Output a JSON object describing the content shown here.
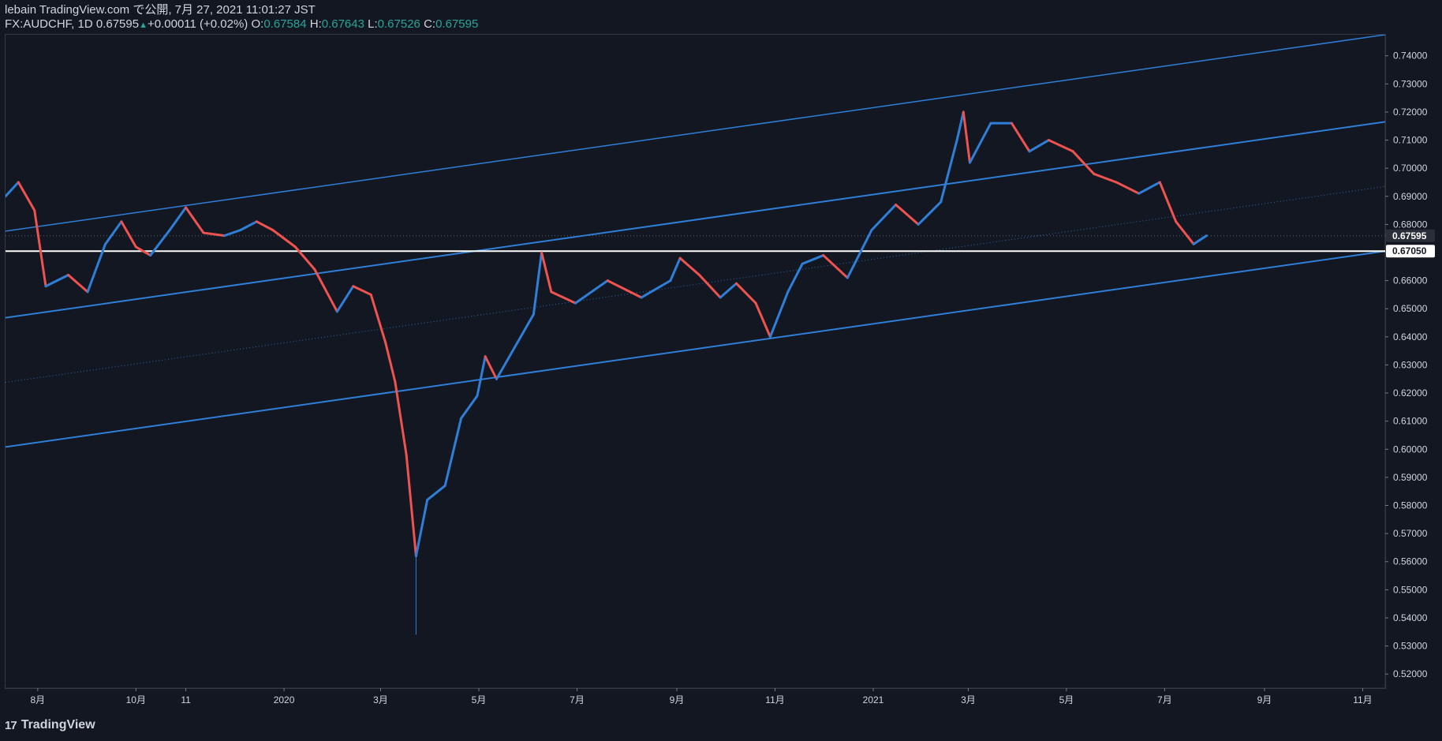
{
  "header": {
    "line1": "lebain TradingView.com で公開, 7月 27, 2021 11:01:27 JST",
    "symbol": "FX:AUDCHF, 1D",
    "last": "0.67595",
    "up_arrow": "▲",
    "change": "+0.00011 (+0.02%)",
    "o_label": "O:",
    "o_value": "0.67584",
    "h_label": "H:",
    "h_value": "0.67643",
    "l_label": "L:",
    "l_value": "0.67526",
    "c_label": "C:",
    "c_value": "0.67595"
  },
  "footer": {
    "logo_mark": "17",
    "logo_text": "TradingView"
  },
  "colors": {
    "background": "#131722",
    "up": "#2f7fd8",
    "down": "#ef5350",
    "channel": "#2f7fd8",
    "level": "#ffffff",
    "axis_text": "#d1d4dc"
  },
  "chart_data": {
    "type": "line",
    "title": "",
    "xlabel": "",
    "ylabel": "",
    "ylim": [
      0.515,
      0.7475
    ],
    "y_ticks": [
      "0.74000",
      "0.73000",
      "0.72000",
      "0.71000",
      "0.70000",
      "0.69000",
      "0.68000",
      "0.67000",
      "0.66000",
      "0.65000",
      "0.64000",
      "0.63000",
      "0.62000",
      "0.61000",
      "0.60000",
      "0.59000",
      "0.58000",
      "0.57000",
      "0.56000",
      "0.55000",
      "0.54000",
      "0.53000",
      "0.52000"
    ],
    "x_ticks": [
      {
        "label": "8月",
        "date": "2019-08-01"
      },
      {
        "label": "10月",
        "date": "2019-10-01"
      },
      {
        "label": "11",
        "date": "2019-11-01"
      },
      {
        "label": "2020",
        "date": "2020-01-01"
      },
      {
        "label": "3月",
        "date": "2020-03-01"
      },
      {
        "label": "5月",
        "date": "2020-05-01"
      },
      {
        "label": "7月",
        "date": "2020-07-01"
      },
      {
        "label": "9月",
        "date": "2020-09-01"
      },
      {
        "label": "11月",
        "date": "2020-11-01"
      },
      {
        "label": "2021",
        "date": "2021-01-01"
      },
      {
        "label": "3月",
        "date": "2021-03-01"
      },
      {
        "label": "5月",
        "date": "2021-05-01"
      },
      {
        "label": "7月",
        "date": "2021-07-01"
      },
      {
        "label": "9月",
        "date": "2021-09-01"
      },
      {
        "label": "11月",
        "date": "2021-11-01"
      }
    ],
    "xlim": [
      "2019-07-12",
      "2021-11-15"
    ],
    "price_path": [
      {
        "date": "2019-07-12",
        "price": 0.69
      },
      {
        "date": "2019-07-20",
        "price": 0.695
      },
      {
        "date": "2019-07-30",
        "price": 0.685
      },
      {
        "date": "2019-08-06",
        "price": 0.658
      },
      {
        "date": "2019-08-20",
        "price": 0.662
      },
      {
        "date": "2019-09-01",
        "price": 0.656
      },
      {
        "date": "2019-09-12",
        "price": 0.673
      },
      {
        "date": "2019-09-22",
        "price": 0.681
      },
      {
        "date": "2019-10-01",
        "price": 0.672
      },
      {
        "date": "2019-10-10",
        "price": 0.669
      },
      {
        "date": "2019-10-22",
        "price": 0.678
      },
      {
        "date": "2019-11-01",
        "price": 0.686
      },
      {
        "date": "2019-11-12",
        "price": 0.677
      },
      {
        "date": "2019-11-25",
        "price": 0.676
      },
      {
        "date": "2019-12-05",
        "price": 0.678
      },
      {
        "date": "2019-12-15",
        "price": 0.681
      },
      {
        "date": "2019-12-25",
        "price": 0.678
      },
      {
        "date": "2020-01-08",
        "price": 0.672
      },
      {
        "date": "2020-01-20",
        "price": 0.664
      },
      {
        "date": "2020-02-03",
        "price": 0.649
      },
      {
        "date": "2020-02-13",
        "price": 0.658
      },
      {
        "date": "2020-02-24",
        "price": 0.655
      },
      {
        "date": "2020-03-04",
        "price": 0.638
      },
      {
        "date": "2020-03-10",
        "price": 0.624
      },
      {
        "date": "2020-03-17",
        "price": 0.598
      },
      {
        "date": "2020-03-23",
        "price": 0.562
      },
      {
        "date": "2020-03-30",
        "price": 0.582
      },
      {
        "date": "2020-04-10",
        "price": 0.587
      },
      {
        "date": "2020-04-20",
        "price": 0.611
      },
      {
        "date": "2020-04-30",
        "price": 0.619
      },
      {
        "date": "2020-05-05",
        "price": 0.633
      },
      {
        "date": "2020-05-12",
        "price": 0.625
      },
      {
        "date": "2020-05-25",
        "price": 0.638
      },
      {
        "date": "2020-06-04",
        "price": 0.648
      },
      {
        "date": "2020-06-09",
        "price": 0.67
      },
      {
        "date": "2020-06-15",
        "price": 0.656
      },
      {
        "date": "2020-06-30",
        "price": 0.652
      },
      {
        "date": "2020-07-20",
        "price": 0.66
      },
      {
        "date": "2020-08-10",
        "price": 0.654
      },
      {
        "date": "2020-08-28",
        "price": 0.66
      },
      {
        "date": "2020-09-03",
        "price": 0.668
      },
      {
        "date": "2020-09-15",
        "price": 0.662
      },
      {
        "date": "2020-09-28",
        "price": 0.654
      },
      {
        "date": "2020-10-08",
        "price": 0.659
      },
      {
        "date": "2020-10-20",
        "price": 0.652
      },
      {
        "date": "2020-10-29",
        "price": 0.64
      },
      {
        "date": "2020-11-09",
        "price": 0.656
      },
      {
        "date": "2020-11-18",
        "price": 0.666
      },
      {
        "date": "2020-12-01",
        "price": 0.669
      },
      {
        "date": "2020-12-16",
        "price": 0.661
      },
      {
        "date": "2020-12-31",
        "price": 0.678
      },
      {
        "date": "2021-01-15",
        "price": 0.687
      },
      {
        "date": "2021-01-29",
        "price": 0.68
      },
      {
        "date": "2021-02-12",
        "price": 0.688
      },
      {
        "date": "2021-02-22",
        "price": 0.71
      },
      {
        "date": "2021-02-26",
        "price": 0.72
      },
      {
        "date": "2021-03-02",
        "price": 0.702
      },
      {
        "date": "2021-03-15",
        "price": 0.716
      },
      {
        "date": "2021-03-28",
        "price": 0.716
      },
      {
        "date": "2021-04-08",
        "price": 0.706
      },
      {
        "date": "2021-04-20",
        "price": 0.71
      },
      {
        "date": "2021-05-05",
        "price": 0.706
      },
      {
        "date": "2021-05-18",
        "price": 0.698
      },
      {
        "date": "2021-06-01",
        "price": 0.695
      },
      {
        "date": "2021-06-15",
        "price": 0.691
      },
      {
        "date": "2021-06-28",
        "price": 0.695
      },
      {
        "date": "2021-07-08",
        "price": 0.681
      },
      {
        "date": "2021-07-19",
        "price": 0.673
      },
      {
        "date": "2021-07-27",
        "price": 0.676
      }
    ],
    "price_labels": [
      {
        "value": 0.67595,
        "text": "0.67595"
      },
      {
        "value": 0.6705,
        "text": "0.67050"
      }
    ],
    "channel_lines": [
      {
        "name": "upper",
        "points": [
          {
            "date": "2019-07-12",
            "price": 0.6776
          },
          {
            "date": "2021-11-15",
            "price": 0.7475
          }
        ],
        "style": "solid"
      },
      {
        "name": "middle",
        "points": [
          {
            "date": "2019-07-12",
            "price": 0.6468
          },
          {
            "date": "2021-11-15",
            "price": 0.7165
          }
        ],
        "style": "solid"
      },
      {
        "name": "dotted",
        "points": [
          {
            "date": "2019-07-12",
            "price": 0.6238
          },
          {
            "date": "2021-11-15",
            "price": 0.6935
          }
        ],
        "style": "dotted"
      },
      {
        "name": "lower",
        "points": [
          {
            "date": "2019-07-12",
            "price": 0.6008
          },
          {
            "date": "2021-11-15",
            "price": 0.6705
          }
        ],
        "style": "solid"
      }
    ],
    "horizontal_levels": [
      {
        "price": 0.6705
      }
    ],
    "grid": false
  }
}
